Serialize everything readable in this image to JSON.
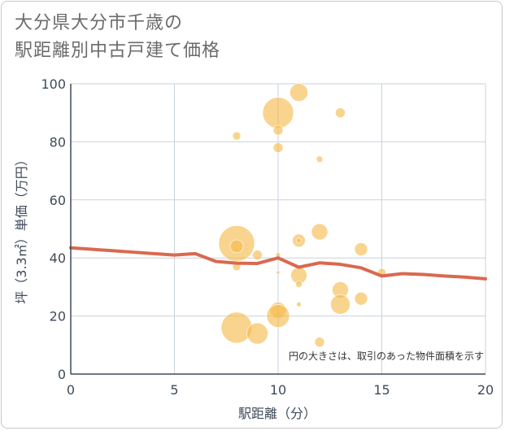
{
  "chart_data": {
    "type": "scatter",
    "title_line1": "大分県大分市千歳の",
    "title_line2": "駅距離別中古戸建て価格",
    "xlabel": "駅距離（分）",
    "ylabel": "坪（3.3㎡）単価（万円）",
    "xlim": [
      0,
      20
    ],
    "ylim": [
      0,
      100
    ],
    "x_ticks": [
      0,
      5,
      10,
      15,
      20
    ],
    "y_ticks": [
      0,
      20,
      40,
      60,
      80,
      100
    ],
    "annotation": "円の大きさは、取引のあった物件面積を示す",
    "colors": {
      "bubble": "#f5b949",
      "line": "#d9694f",
      "grid": "#c9d2dc",
      "axis": "#3f4a5a"
    },
    "bubbles": [
      {
        "x": 8,
        "y": 82,
        "size": 5
      },
      {
        "x": 8,
        "y": 45,
        "size": 22
      },
      {
        "x": 8,
        "y": 44,
        "size": 8
      },
      {
        "x": 8,
        "y": 37,
        "size": 5
      },
      {
        "x": 8,
        "y": 16,
        "size": 19
      },
      {
        "x": 9,
        "y": 41,
        "size": 6
      },
      {
        "x": 9,
        "y": 14,
        "size": 13
      },
      {
        "x": 10,
        "y": 90,
        "size": 19
      },
      {
        "x": 10,
        "y": 84,
        "size": 6
      },
      {
        "x": 10,
        "y": 78,
        "size": 6
      },
      {
        "x": 10,
        "y": 41,
        "size": 3
      },
      {
        "x": 10,
        "y": 35,
        "size": 2
      },
      {
        "x": 10,
        "y": 22,
        "size": 10
      },
      {
        "x": 10,
        "y": 20,
        "size": 14
      },
      {
        "x": 11,
        "y": 97,
        "size": 11
      },
      {
        "x": 11,
        "y": 46,
        "size": 8
      },
      {
        "x": 11,
        "y": 46,
        "size": 3
      },
      {
        "x": 11,
        "y": 34,
        "size": 10
      },
      {
        "x": 11,
        "y": 31,
        "size": 4
      },
      {
        "x": 11,
        "y": 24,
        "size": 3
      },
      {
        "x": 12,
        "y": 74,
        "size": 4
      },
      {
        "x": 12,
        "y": 49,
        "size": 10
      },
      {
        "x": 12,
        "y": 11,
        "size": 6
      },
      {
        "x": 13,
        "y": 90,
        "size": 6
      },
      {
        "x": 13,
        "y": 29,
        "size": 10
      },
      {
        "x": 13,
        "y": 24,
        "size": 12
      },
      {
        "x": 14,
        "y": 43,
        "size": 8
      },
      {
        "x": 14,
        "y": 26,
        "size": 8
      },
      {
        "x": 15,
        "y": 35,
        "size": 5
      }
    ],
    "trend": {
      "x": [
        0,
        1,
        2,
        3,
        4,
        5,
        6,
        7,
        8,
        9,
        10,
        11,
        12,
        13,
        14,
        15,
        16,
        17,
        18,
        19,
        20
      ],
      "y": [
        43.5,
        43,
        42.5,
        42,
        41.5,
        41,
        41.5,
        38.8,
        38.2,
        38.1,
        40,
        36.8,
        38.3,
        37.8,
        36.6,
        33.8,
        34.6,
        34.3,
        33.8,
        33.4,
        32.8
      ]
    }
  }
}
